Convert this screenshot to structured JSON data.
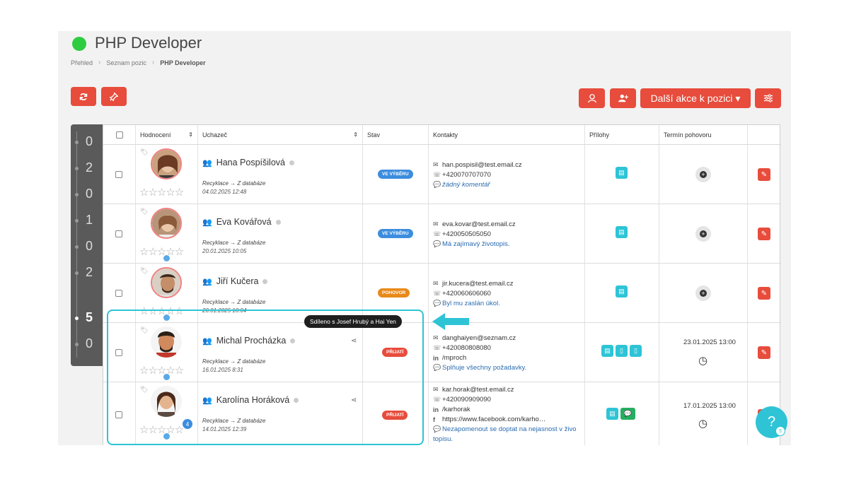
{
  "header": {
    "title": "PHP Developer",
    "status_color": "#2ecc40"
  },
  "breadcrumb": [
    "Přehled",
    "Seznam pozic",
    "PHP Developer"
  ],
  "toolbar": {
    "more_actions_label": "Další akce k pozici ▾"
  },
  "ranking": [
    "0",
    "2",
    "0",
    "1",
    "0",
    "2",
    "5",
    "0"
  ],
  "table": {
    "headers": [
      "Hodnocení",
      "Uchazeč",
      "Stav",
      "Kontakty",
      "Přílohy",
      "Termín pohovoru"
    ],
    "rows": [
      {
        "name": "Hana Pospíšilová",
        "source": "Recyklace → Z databáze",
        "date": "04.02.2025 12:48",
        "status": "VE VÝBĚRU",
        "contacts": [
          "han.pospisil@test.email.cz",
          "+420070707070"
        ],
        "note": "žádný komentář",
        "interview": ""
      },
      {
        "name": "Eva Kovářová",
        "source": "Recyklace → Z databáze",
        "date": "20.01.2025 10:05",
        "status": "VE VÝBĚRU",
        "contacts": [
          "eva.kovar@test.email.cz",
          "+420050505050"
        ],
        "note": "Má zajímavý životopis.",
        "interview": ""
      },
      {
        "name": "Jiří Kučera",
        "source": "Recyklace → Z databáze",
        "date": "20.01.2025 10:04",
        "status": "POHOVOR",
        "contacts": [
          "jir.kucera@test.email.cz",
          "+420060606060"
        ],
        "note": "Byl mu zaslán úkol.",
        "interview": ""
      },
      {
        "name": "Michal Procházka",
        "source": "Recyklace → Z databáze",
        "date": "16.01.2025 8:31",
        "status": "PŘIJATÍ",
        "contacts": [
          "danghaiyen@seznam.cz",
          "+420080808080",
          "/mproch"
        ],
        "note": "Splňuje všechny požadavky.",
        "interview": "23.01.2025 13:00"
      },
      {
        "name": "Karolína Horáková",
        "source": "Recyklace → Z databáze",
        "date": "14.01.2025 12:39",
        "status": "PŘIJATÍ",
        "contacts": [
          "kar.horak@test.email.cz",
          "+420090909090",
          "/karhorak",
          "https://www.facebook.com/karho…"
        ],
        "note": "Nezapomenout se doptat na nejasnost v živo",
        "note2": "topisu.",
        "interview": "17.01.2025 13:00",
        "badge": "4"
      }
    ]
  },
  "tooltip": "Sdíleno s Josef Hrubý a Hai Yen",
  "help": {
    "label": "?",
    "badge": "5"
  },
  "colors": {
    "accent": "#e74c3c",
    "highlight": "#2ec4d6"
  }
}
